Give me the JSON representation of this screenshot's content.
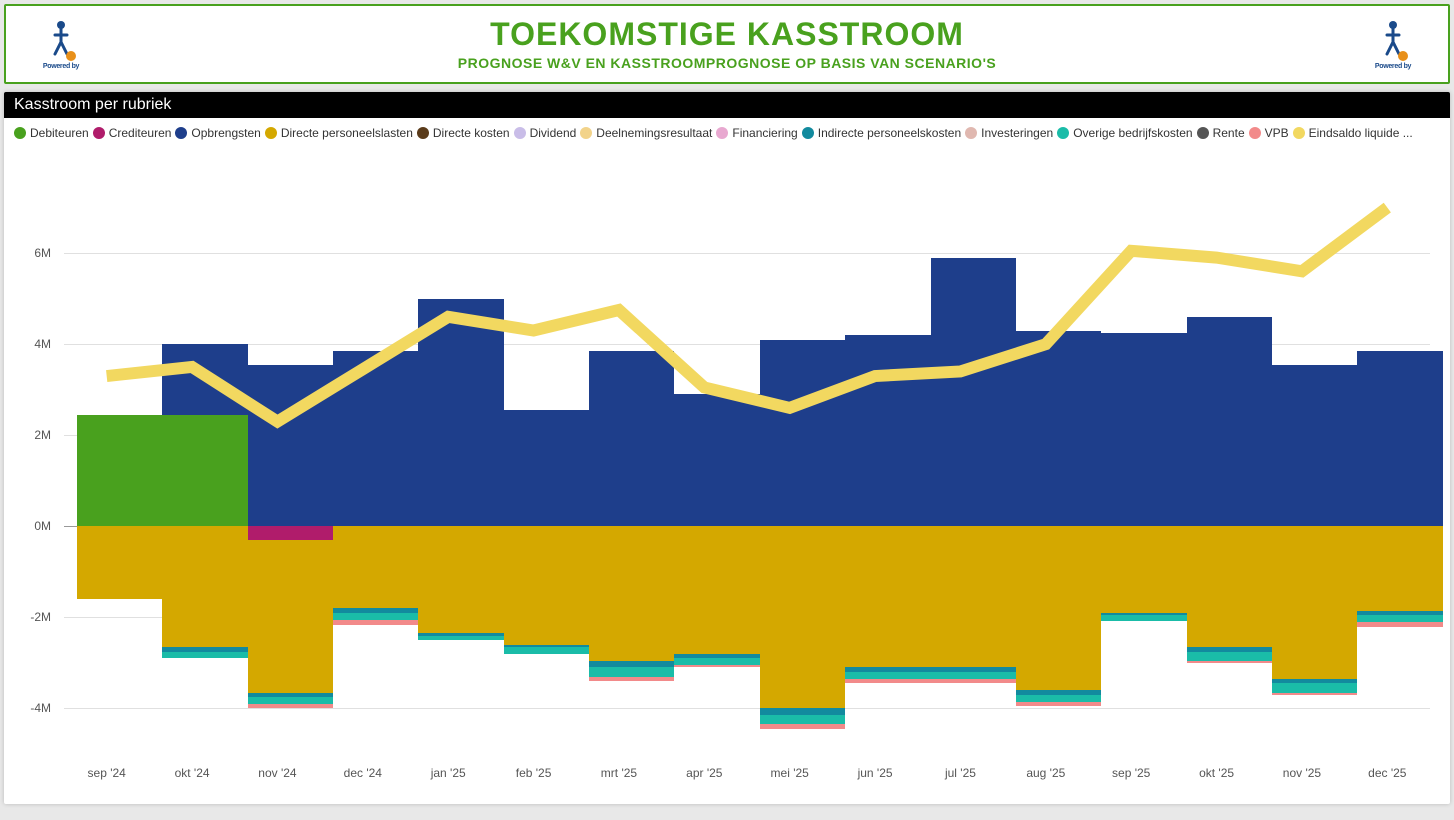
{
  "header": {
    "title": "TOEKOMSTIGE KASSTROOM",
    "subtitle": "PROGNOSE W&V EN KASSTROOMPROGNOSE OP BASIS VAN SCENARIO'S",
    "logo_powered": "Powered by",
    "logo_brand": "i2o"
  },
  "chart": {
    "type": "stacked-bar-with-line",
    "title": "Kasstroom per rubriek",
    "background_color": "#ffffff",
    "grid_color": "#e0e0e0",
    "zero_line_color": "#999999",
    "axis_text_color": "#555555",
    "axis_fontsize": 12,
    "ylim": [
      -5,
      8
    ],
    "ytick_step": 2,
    "yticks": [
      -4,
      -2,
      0,
      2,
      4,
      6
    ],
    "ytick_labels": [
      "-4M",
      "-2M",
      "0M",
      "2M",
      "4M",
      "6M"
    ],
    "bar_width": 0.7,
    "categories": [
      "sep '24",
      "okt '24",
      "nov '24",
      "dec '24",
      "jan '25",
      "feb '25",
      "mrt '25",
      "apr '25",
      "mei '25",
      "jun '25",
      "jul '25",
      "aug '25",
      "sep '25",
      "okt '25",
      "nov '25",
      "dec '25"
    ],
    "legend": [
      {
        "label": "Debiteuren",
        "color": "#49a11e"
      },
      {
        "label": "Crediteuren",
        "color": "#b01c6b"
      },
      {
        "label": "Opbrengsten",
        "color": "#1e3e8b"
      },
      {
        "label": "Directe personeelslasten",
        "color": "#d4a800"
      },
      {
        "label": "Directe kosten",
        "color": "#5a3b1a"
      },
      {
        "label": "Dividend",
        "color": "#c9bde8"
      },
      {
        "label": "Deelnemingsresultaat",
        "color": "#f2d38a"
      },
      {
        "label": "Financiering",
        "color": "#e8a8d0"
      },
      {
        "label": "Indirecte personeelskosten",
        "color": "#128a9e"
      },
      {
        "label": "Investeringen",
        "color": "#e0b8b0"
      },
      {
        "label": "Overige bedrijfskosten",
        "color": "#1abca8"
      },
      {
        "label": "Rente",
        "color": "#555555"
      },
      {
        "label": "VPB",
        "color": "#f28a8a"
      },
      {
        "label": "Eindsaldo liquide ...",
        "color": "#f2d860"
      }
    ],
    "series_positive": [
      {
        "key": "debiteuren",
        "color": "#49a11e"
      },
      {
        "key": "opbrengsten",
        "color": "#1e3e8b"
      }
    ],
    "series_negative": [
      {
        "key": "crediteuren",
        "color": "#b01c6b"
      },
      {
        "key": "directe_personeelslasten",
        "color": "#d4a800"
      },
      {
        "key": "indirecte_personeelskosten",
        "color": "#128a9e"
      },
      {
        "key": "overige_bedrijfskosten",
        "color": "#1abca8"
      },
      {
        "key": "vpb",
        "color": "#f28a8a"
      }
    ],
    "data": [
      {
        "debiteuren": 2.45,
        "opbrengsten": 0,
        "crediteuren": 0,
        "directe_personeelslasten": 1.6,
        "indirecte_personeelskosten": 0,
        "overige_bedrijfskosten": 0,
        "vpb": 0
      },
      {
        "debiteuren": 2.45,
        "opbrengsten": 1.55,
        "crediteuren": 0,
        "directe_personeelslasten": 2.65,
        "indirecte_personeelskosten": 0.1,
        "overige_bedrijfskosten": 0.15,
        "vpb": 0
      },
      {
        "debiteuren": 0,
        "opbrengsten": 3.55,
        "crediteuren": 0.3,
        "directe_personeelslasten": 3.35,
        "indirecte_personeelskosten": 0.1,
        "overige_bedrijfskosten": 0.15,
        "vpb": 0.1
      },
      {
        "debiteuren": 0,
        "opbrengsten": 3.85,
        "crediteuren": 0,
        "directe_personeelslasten": 1.8,
        "indirecte_personeelskosten": 0.1,
        "overige_bedrijfskosten": 0.15,
        "vpb": 0.12
      },
      {
        "debiteuren": 0,
        "opbrengsten": 5.0,
        "crediteuren": 0,
        "directe_personeelslasten": 2.35,
        "indirecte_personeelskosten": 0.05,
        "overige_bedrijfskosten": 0.1,
        "vpb": 0
      },
      {
        "debiteuren": 0,
        "opbrengsten": 2.55,
        "crediteuren": 0,
        "directe_personeelslasten": 2.6,
        "indirecte_personeelskosten": 0.05,
        "overige_bedrijfskosten": 0.15,
        "vpb": 0
      },
      {
        "debiteuren": 0,
        "opbrengsten": 3.85,
        "crediteuren": 0,
        "directe_personeelslasten": 2.95,
        "indirecte_personeelskosten": 0.15,
        "overige_bedrijfskosten": 0.2,
        "vpb": 0.1
      },
      {
        "debiteuren": 0,
        "opbrengsten": 2.9,
        "crediteuren": 0,
        "directe_personeelslasten": 2.8,
        "indirecte_personeelskosten": 0.1,
        "overige_bedrijfskosten": 0.15,
        "vpb": 0.05
      },
      {
        "debiteuren": 0,
        "opbrengsten": 4.1,
        "crediteuren": 0,
        "directe_personeelslasten": 4.0,
        "indirecte_personeelskosten": 0.15,
        "overige_bedrijfskosten": 0.2,
        "vpb": 0.1
      },
      {
        "debiteuren": 0,
        "opbrengsten": 4.2,
        "crediteuren": 0,
        "directe_personeelslasten": 3.1,
        "indirecte_personeelskosten": 0.1,
        "overige_bedrijfskosten": 0.15,
        "vpb": 0.1
      },
      {
        "debiteuren": 0,
        "opbrengsten": 5.9,
        "crediteuren": 0,
        "directe_personeelslasten": 3.1,
        "indirecte_personeelskosten": 0.1,
        "overige_bedrijfskosten": 0.15,
        "vpb": 0.1
      },
      {
        "debiteuren": 0,
        "opbrengsten": 4.3,
        "crediteuren": 0,
        "directe_personeelslasten": 3.6,
        "indirecte_personeelskosten": 0.1,
        "overige_bedrijfskosten": 0.15,
        "vpb": 0.1
      },
      {
        "debiteuren": 0,
        "opbrengsten": 4.25,
        "crediteuren": 0,
        "directe_personeelslasten": 1.9,
        "indirecte_personeelskosten": 0.05,
        "overige_bedrijfskosten": 0.12,
        "vpb": 0
      },
      {
        "debiteuren": 0,
        "opbrengsten": 4.6,
        "crediteuren": 0,
        "directe_personeelslasten": 2.65,
        "indirecte_personeelskosten": 0.1,
        "overige_bedrijfskosten": 0.2,
        "vpb": 0.05
      },
      {
        "debiteuren": 0,
        "opbrengsten": 3.55,
        "crediteuren": 0,
        "directe_personeelslasten": 3.35,
        "indirecte_personeelskosten": 0.1,
        "overige_bedrijfskosten": 0.2,
        "vpb": 0.05
      },
      {
        "debiteuren": 0,
        "opbrengsten": 3.85,
        "crediteuren": 0,
        "directe_personeelslasten": 1.85,
        "indirecte_personeelskosten": 0.1,
        "overige_bedrijfskosten": 0.15,
        "vpb": 0.12
      }
    ],
    "line_series": {
      "label": "Eindsaldo liquide ...",
      "color": "#f2d860",
      "width": 3,
      "values": [
        3.3,
        3.5,
        2.3,
        3.45,
        4.6,
        4.3,
        4.75,
        3.05,
        2.6,
        3.3,
        3.4,
        4.0,
        6.05,
        5.9,
        5.6,
        7.0
      ]
    }
  }
}
